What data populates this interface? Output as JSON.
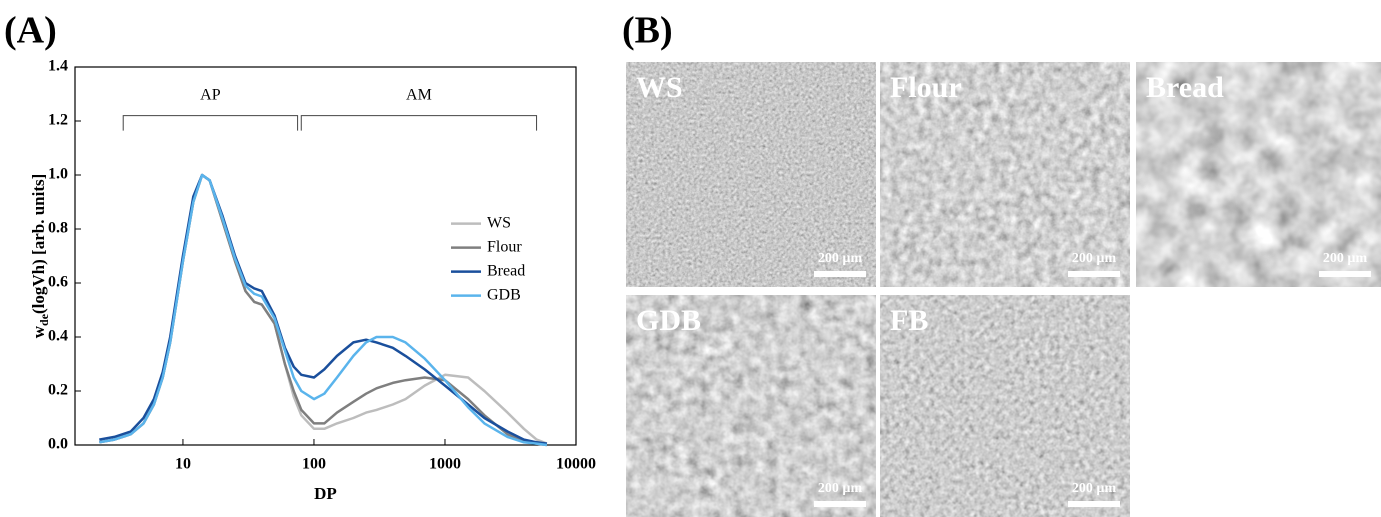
{
  "chart_data": {
    "type": "line",
    "panel_label": "(A)",
    "xlabel": "DP",
    "ylabel": {
      "main": "w",
      "sub": "de",
      "rest": "(logVh) [arb. units]"
    },
    "log_x": true,
    "xlim": [
      1.5,
      10000
    ],
    "xticks": [
      10,
      100,
      1000,
      10000
    ],
    "ylim": [
      0,
      1.4
    ],
    "yticks": [
      {
        "value": 0,
        "label": "0.0"
      },
      {
        "value": 0.2,
        "label": "0.2"
      },
      {
        "value": 0.4,
        "label": "0.4"
      },
      {
        "value": 0.6,
        "label": "0.6"
      },
      {
        "value": 0.8,
        "label": "0.8"
      },
      {
        "value": 1.0,
        "label": "1.0"
      },
      {
        "value": 1.2,
        "label": "1.2"
      },
      {
        "value": 1.4,
        "label": "1.4"
      }
    ],
    "legend": "right",
    "annotations": [
      {
        "text": "AP",
        "range": [
          3.5,
          75
        ],
        "y": 1.22
      },
      {
        "text": "AM",
        "range": [
          80,
          5000
        ],
        "y": 1.22
      }
    ],
    "x": [
      2.3,
      3,
      4,
      5,
      6,
      7,
      8,
      10,
      12,
      14,
      16,
      20,
      25,
      30,
      35,
      40,
      50,
      60,
      70,
      80,
      100,
      120,
      150,
      200,
      250,
      300,
      400,
      500,
      700,
      1000,
      1500,
      2000,
      3000,
      4000,
      5000,
      6000
    ],
    "series": [
      {
        "name": "WS",
        "color": "#bdbdbd",
        "values": [
          0.01,
          0.02,
          0.04,
          0.08,
          0.15,
          0.25,
          0.38,
          0.68,
          0.9,
          1.0,
          0.98,
          0.83,
          0.68,
          0.57,
          0.53,
          0.52,
          0.45,
          0.3,
          0.18,
          0.11,
          0.06,
          0.06,
          0.08,
          0.1,
          0.12,
          0.13,
          0.15,
          0.17,
          0.22,
          0.26,
          0.25,
          0.2,
          0.12,
          0.06,
          0.02,
          0.005
        ]
      },
      {
        "name": "Flour",
        "color": "#7f7f7f",
        "values": [
          0.01,
          0.02,
          0.04,
          0.08,
          0.15,
          0.25,
          0.38,
          0.68,
          0.9,
          1.0,
          0.98,
          0.83,
          0.68,
          0.57,
          0.53,
          0.52,
          0.45,
          0.3,
          0.2,
          0.13,
          0.08,
          0.08,
          0.12,
          0.16,
          0.19,
          0.21,
          0.23,
          0.24,
          0.25,
          0.24,
          0.17,
          0.11,
          0.04,
          0.015,
          0.005,
          0
        ]
      },
      {
        "name": "Bread",
        "color": "#1a4f9c",
        "values": [
          0.02,
          0.03,
          0.05,
          0.1,
          0.17,
          0.27,
          0.4,
          0.7,
          0.92,
          1.0,
          0.98,
          0.85,
          0.7,
          0.6,
          0.58,
          0.57,
          0.48,
          0.36,
          0.29,
          0.26,
          0.25,
          0.28,
          0.33,
          0.38,
          0.39,
          0.38,
          0.36,
          0.33,
          0.28,
          0.22,
          0.15,
          0.1,
          0.05,
          0.02,
          0.01,
          0.005
        ]
      },
      {
        "name": "GDB",
        "color": "#5ab4ec",
        "values": [
          0.01,
          0.02,
          0.04,
          0.08,
          0.15,
          0.25,
          0.38,
          0.68,
          0.9,
          1.0,
          0.98,
          0.84,
          0.69,
          0.59,
          0.56,
          0.55,
          0.47,
          0.35,
          0.25,
          0.2,
          0.17,
          0.19,
          0.25,
          0.33,
          0.38,
          0.4,
          0.4,
          0.38,
          0.32,
          0.24,
          0.14,
          0.08,
          0.03,
          0.01,
          0.005,
          0
        ]
      }
    ]
  },
  "panels": {
    "label": "(B)",
    "images": [
      {
        "label": "WS",
        "scale": "200 µm"
      },
      {
        "label": "Flour",
        "scale": "200 µm"
      },
      {
        "label": "Bread",
        "scale": "200 µm"
      },
      {
        "label": "GDB",
        "scale": "200 µm"
      },
      {
        "label": "FB",
        "scale": "200 µm"
      }
    ]
  }
}
